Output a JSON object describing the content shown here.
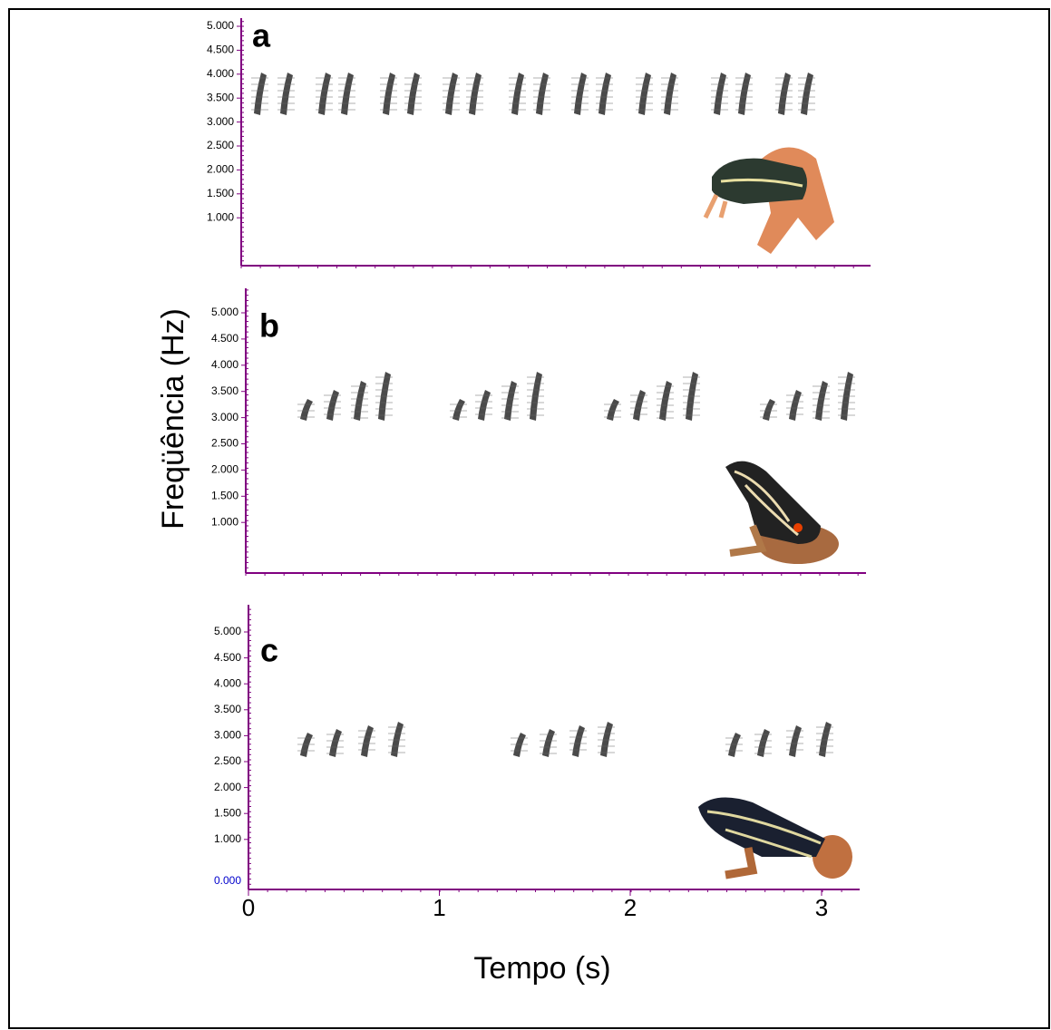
{
  "y_label": "Freqüência (Hz)",
  "x_label": "Tempo (s)",
  "xticks": [
    "0",
    "1",
    "2",
    "3"
  ],
  "panels": [
    {
      "label": "a",
      "yticks": [
        "5.000",
        "4.500",
        "4.000",
        "3.500",
        "3.000",
        "2.500",
        "2.000",
        "1.500",
        "1.000"
      ]
    },
    {
      "label": "b",
      "yticks": [
        "5.000",
        "4.500",
        "4.000",
        "3.500",
        "3.000",
        "2.500",
        "2.000",
        "1.500",
        "1.000"
      ]
    },
    {
      "label": "c",
      "yticks": [
        "5.000",
        "4.500",
        "4.000",
        "3.500",
        "3.000",
        "2.500",
        "2.000",
        "1.500",
        "1.000"
      ],
      "zero_label": "0.000"
    }
  ]
}
